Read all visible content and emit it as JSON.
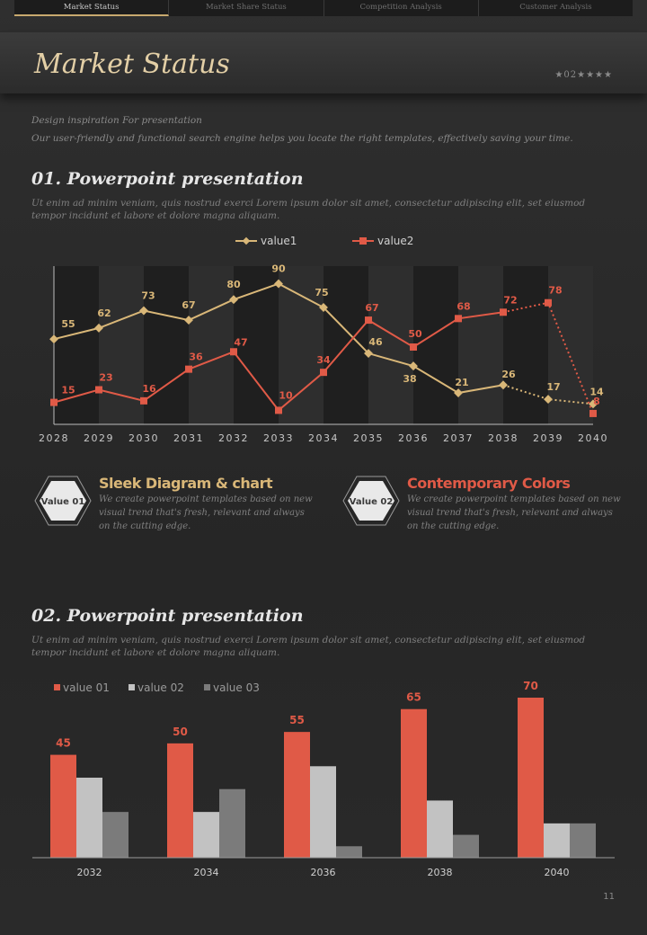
{
  "nav": {
    "tabs": [
      {
        "label": "Market Status",
        "active": true
      },
      {
        "label": "Market Share Status",
        "active": false
      },
      {
        "label": "Competition Analysis",
        "active": false
      },
      {
        "label": "Customer Analysis",
        "active": false
      }
    ]
  },
  "header": {
    "title": "Market Status",
    "marker": "★02★★★★"
  },
  "intro": {
    "subtitle": "Design inspiration For presentation",
    "text": "Our user-friendly and functional search engine helps you locate the right templates, effectively saving your time."
  },
  "section1": {
    "title": "01. Powerpoint presentation",
    "body": "Ut enim ad minim veniam, quis nostrud exerci  Lorem ipsum  dolor sit amet, consectetur adipiscing elit, set eiusmod  tempor incidunt  et labore et dolore magna aliquam."
  },
  "features": [
    {
      "badge": "Value 01",
      "title": "Sleek Diagram & chart",
      "text": "We create powerpoint templates based on new visual trend that's fresh, relevant and always on the cutting edge.",
      "color": "#d9b778"
    },
    {
      "badge": "Value 02",
      "title": "Contemporary Colors",
      "text": "We create powerpoint templates based on new visual trend that's fresh, relevant and always on the cutting edge.",
      "color": "#e05a47"
    }
  ],
  "section2": {
    "title": "02. Powerpoint presentation",
    "body": "Ut enim ad minim veniam, quis nostrud exerci  Lorem ipsum  dolor sit amet, consectetur adipiscing elit, set eiusmod  tempor incidunt  et labore et dolore magna aliquam."
  },
  "colors": {
    "value1": "#d9b778",
    "value2": "#e05a47",
    "bar1": "#e05a47",
    "bar2": "#c2c2c2",
    "bar3": "#7b7b7b"
  },
  "chart_data": [
    {
      "type": "line",
      "x": [
        "2028",
        "2029",
        "2030",
        "2031",
        "2032",
        "2033",
        "2034",
        "2035",
        "2036",
        "2037",
        "2038",
        "2039",
        "2040"
      ],
      "series": [
        {
          "name": "value1",
          "values": [
            55,
            62,
            73,
            67,
            80,
            90,
            75,
            46,
            38,
            21,
            26,
            17,
            14
          ]
        },
        {
          "name": "value2",
          "values": [
            15,
            23,
            16,
            36,
            47,
            10,
            34,
            67,
            50,
            68,
            72,
            78,
            8
          ]
        }
      ],
      "dotted_from_index": 10,
      "title": "",
      "xlabel": "",
      "ylabel": "",
      "ylim": [
        0,
        100
      ],
      "legend": "top-center"
    },
    {
      "type": "bar",
      "categories": [
        "2032",
        "2034",
        "2036",
        "2038",
        "2040"
      ],
      "series": [
        {
          "name": "value 01",
          "values": [
            45,
            50,
            55,
            65,
            70
          ]
        },
        {
          "name": "value 02",
          "values": [
            35,
            20,
            40,
            25,
            15
          ]
        },
        {
          "name": "value 03",
          "values": [
            20,
            30,
            5,
            10,
            15
          ]
        }
      ],
      "labeled_series": "value 01",
      "title": "",
      "xlabel": "",
      "ylabel": "",
      "ylim": [
        0,
        70
      ],
      "legend": "top-left"
    }
  ],
  "footer": {
    "page": "11"
  }
}
